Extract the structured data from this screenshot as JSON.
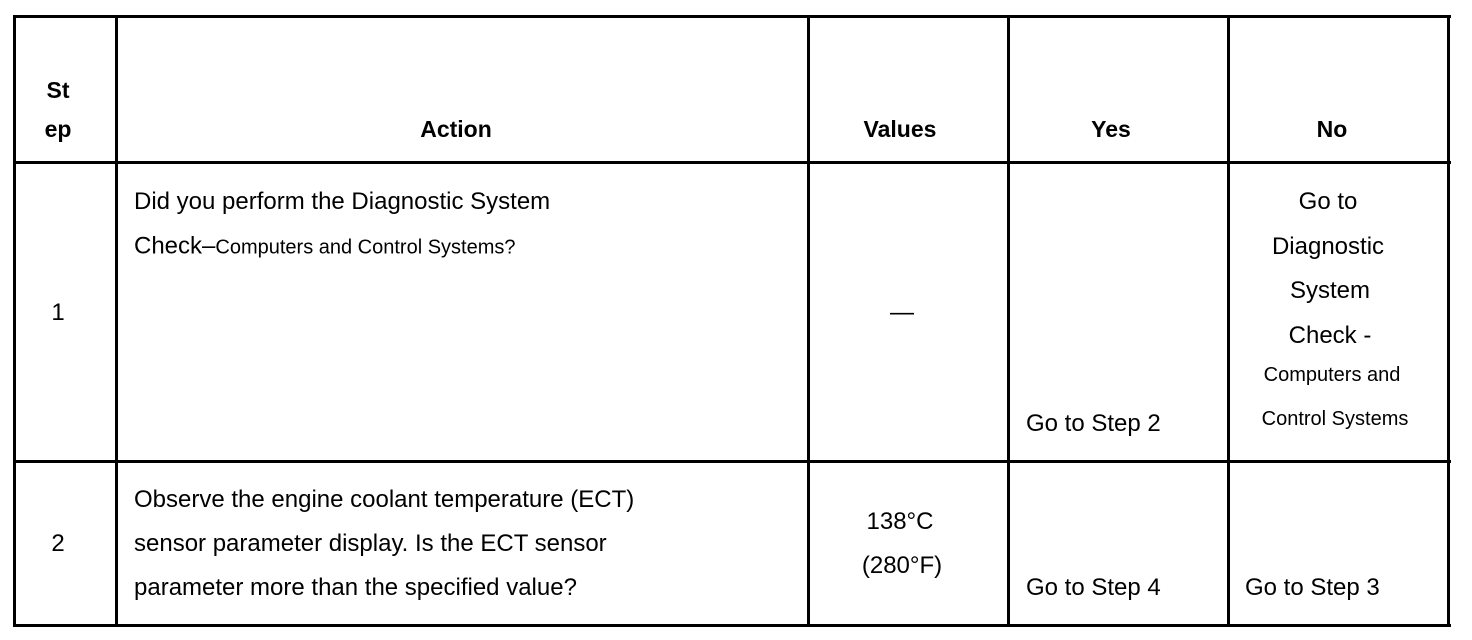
{
  "table": {
    "header": {
      "step": [
        "St",
        "ep"
      ],
      "action": "Action",
      "values": "Values",
      "yes": "Yes",
      "no": "No"
    },
    "rows": [
      {
        "step": "1",
        "action": [
          "Did you perform the Diagnostic System",
          "Check–",
          "Computers and Control Systems?"
        ],
        "values": [
          "—"
        ],
        "yes": "Go to Step 2",
        "no": [
          "Go to",
          "Diagnostic",
          "System",
          "Check -",
          "Computers and",
          "Control Systems"
        ]
      },
      {
        "step": "2",
        "action": [
          "Observe the engine coolant temperature (ECT)",
          "sensor parameter display. Is the ECT sensor",
          "parameter more than the specified value?"
        ],
        "values": [
          "138°C",
          "(280°F)"
        ],
        "yes": "Go to Step 4",
        "no": [
          "Go to Step 3"
        ]
      }
    ]
  }
}
